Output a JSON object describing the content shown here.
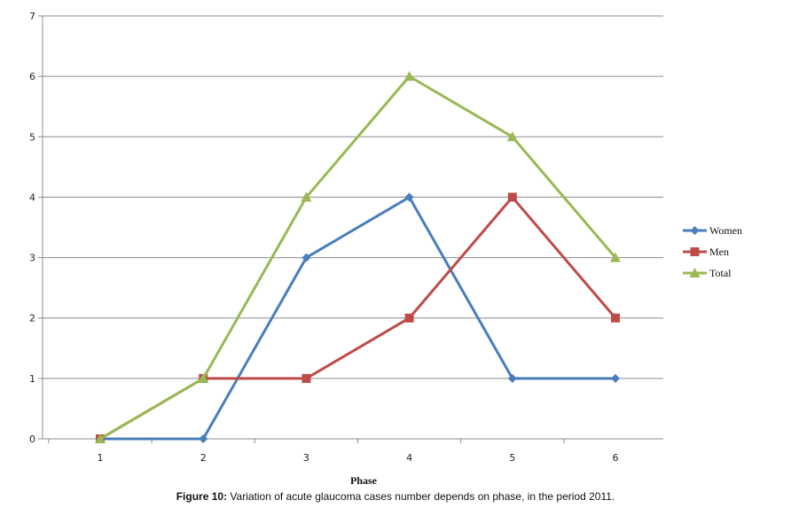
{
  "chart_data": {
    "type": "line",
    "x": [
      1,
      2,
      3,
      4,
      5,
      6
    ],
    "xlabel": "Phase",
    "ylabel": "",
    "ylim": [
      0,
      7
    ],
    "yticks": [
      0,
      1,
      2,
      3,
      4,
      5,
      6,
      7
    ],
    "grid": "horizontal",
    "legend_position": "right",
    "series": [
      {
        "name": "Women",
        "values": [
          0,
          0,
          3,
          4,
          1,
          1
        ],
        "color": "#4a7ebb",
        "marker": "diamond"
      },
      {
        "name": "Men",
        "values": [
          0,
          1,
          1,
          2,
          4,
          2
        ],
        "color": "#be4b48",
        "marker": "square"
      },
      {
        "name": "Total",
        "values": [
          0,
          1,
          4,
          6,
          5,
          3
        ],
        "color": "#98b954",
        "marker": "triangle"
      }
    ]
  },
  "caption": {
    "label": "Figure 10:",
    "text": " Variation of acute glaucoma cases number depends on phase, in the period 2011."
  }
}
